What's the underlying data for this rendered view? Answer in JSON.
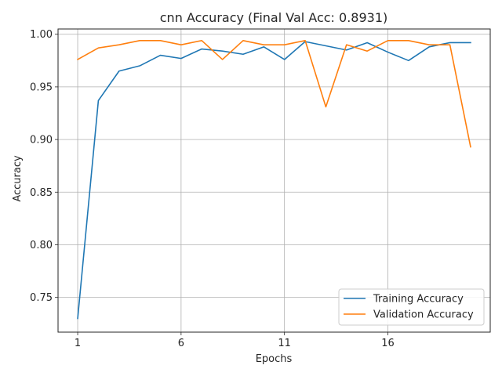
{
  "chart_data": {
    "type": "line",
    "title": "cnn Accuracy (Final Val Acc: 0.8931)",
    "xlabel": "Epochs",
    "ylabel": "Accuracy",
    "xlim": [
      0.05,
      20.95
    ],
    "ylim": [
      0.717,
      1.005
    ],
    "xticks": [
      1,
      6,
      11,
      16
    ],
    "yticks": [
      0.75,
      0.8,
      0.85,
      0.9,
      0.95,
      1.0
    ],
    "ytick_labels": [
      "0.75",
      "0.80",
      "0.85",
      "0.90",
      "0.95",
      "1.00"
    ],
    "grid": true,
    "legend_position": "lower-right",
    "x": [
      1,
      2,
      3,
      4,
      5,
      6,
      7,
      8,
      9,
      10,
      11,
      12,
      13,
      14,
      15,
      16,
      17,
      18,
      19,
      20
    ],
    "series": [
      {
        "name": "Training Accuracy",
        "color": "#1f77b4",
        "values": [
          0.73,
          0.937,
          0.965,
          0.97,
          0.98,
          0.977,
          0.986,
          0.984,
          0.981,
          0.988,
          0.976,
          0.993,
          0.989,
          0.985,
          0.992,
          0.983,
          0.975,
          0.988,
          0.992,
          0.992
        ]
      },
      {
        "name": "Validation Accuracy",
        "color": "#ff7f0e",
        "values": [
          0.976,
          0.987,
          0.99,
          0.994,
          0.994,
          0.99,
          0.994,
          0.976,
          0.994,
          0.99,
          0.99,
          0.994,
          0.931,
          0.99,
          0.984,
          0.994,
          0.994,
          0.99,
          0.99,
          0.893
        ]
      }
    ]
  }
}
